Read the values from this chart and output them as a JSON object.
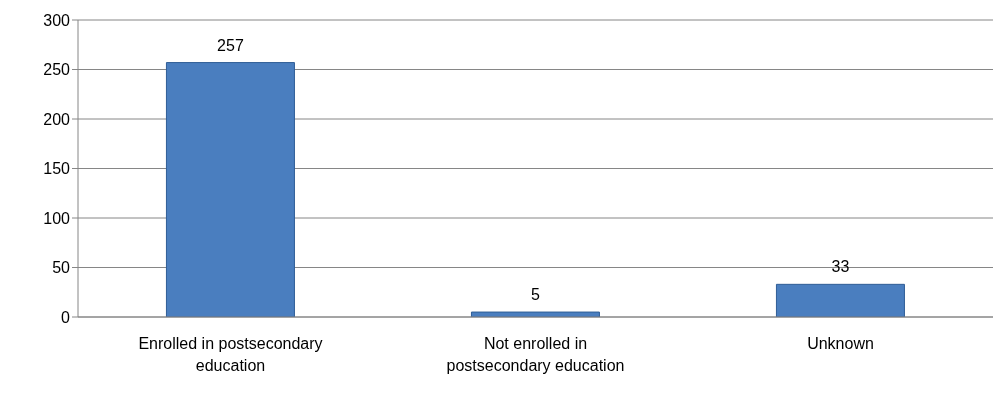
{
  "chart_data": {
    "type": "bar",
    "categories": [
      "Enrolled in postsecondary education",
      "Not enrolled in postsecondary education",
      "Unknown"
    ],
    "values": [
      257,
      5,
      33
    ],
    "color": "#4a7ebf",
    "ylim": [
      0,
      300
    ],
    "yticks": [
      0,
      50,
      100,
      150,
      200,
      250,
      300
    ],
    "grid": "y",
    "data_labels": true
  }
}
